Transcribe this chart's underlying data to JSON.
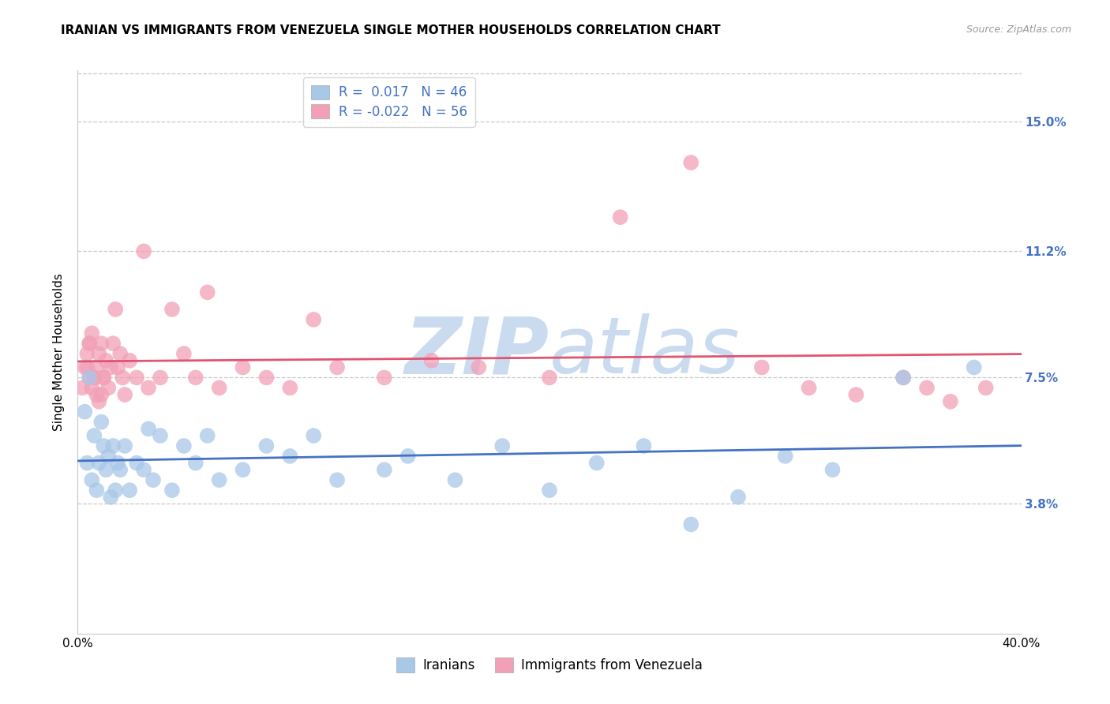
{
  "title": "IRANIAN VS IMMIGRANTS FROM VENEZUELA SINGLE MOTHER HOUSEHOLDS CORRELATION CHART",
  "source": "Source: ZipAtlas.com",
  "ylabel": "Single Mother Households",
  "ytick_vals": [
    3.8,
    7.5,
    11.2,
    15.0
  ],
  "ytick_labels": [
    "3.8%",
    "7.5%",
    "11.2%",
    "15.0%"
  ],
  "xmin": 0.0,
  "xmax": 40.0,
  "ymin": 0.0,
  "ymax": 16.5,
  "iranian_R": 0.017,
  "iranian_N": 46,
  "venezuela_R": -0.022,
  "venezuela_N": 56,
  "iranian_line_color": "#4472c4",
  "venezuela_line_color": "#e05570",
  "iranian_scatter_color": "#a8c8e8",
  "venezuela_scatter_color": "#f2a0b8",
  "watermark_color": "#ddeeff",
  "background_color": "#ffffff",
  "grid_color": "#c8c8c8",
  "right_label_color": "#4472c4",
  "title_fontsize": 11,
  "source_fontsize": 9,
  "axis_label_fontsize": 11,
  "tick_fontsize": 11,
  "legend_fontsize": 12,
  "scatter_size": 200,
  "scatter_alpha": 0.75,
  "line_width": 2.0,
  "iranians_x": [
    0.3,
    0.4,
    0.5,
    0.6,
    0.7,
    0.8,
    0.9,
    1.0,
    1.1,
    1.2,
    1.3,
    1.4,
    1.5,
    1.6,
    1.7,
    1.8,
    2.0,
    2.2,
    2.5,
    2.8,
    3.0,
    3.2,
    3.5,
    4.0,
    4.5,
    5.0,
    5.5,
    6.0,
    7.0,
    8.0,
    9.0,
    10.0,
    11.0,
    13.0,
    14.0,
    16.0,
    18.0,
    20.0,
    22.0,
    24.0,
    26.0,
    28.0,
    30.0,
    32.0,
    35.0,
    38.0
  ],
  "iranians_y": [
    6.5,
    5.0,
    7.5,
    4.5,
    5.8,
    4.2,
    5.0,
    6.2,
    5.5,
    4.8,
    5.2,
    4.0,
    5.5,
    4.2,
    5.0,
    4.8,
    5.5,
    4.2,
    5.0,
    4.8,
    6.0,
    4.5,
    5.8,
    4.2,
    5.5,
    5.0,
    5.8,
    4.5,
    4.8,
    5.5,
    5.2,
    5.8,
    4.5,
    4.8,
    5.2,
    4.5,
    5.5,
    4.2,
    5.0,
    5.5,
    3.2,
    4.0,
    5.2,
    4.8,
    7.5,
    7.8
  ],
  "venezuela_x": [
    0.2,
    0.3,
    0.4,
    0.5,
    0.5,
    0.6,
    0.6,
    0.7,
    0.8,
    0.9,
    1.0,
    1.0,
    1.1,
    1.2,
    1.3,
    1.4,
    1.5,
    1.6,
    1.7,
    1.8,
    1.9,
    2.0,
    2.2,
    2.5,
    2.8,
    3.0,
    3.5,
    4.0,
    4.5,
    5.0,
    5.5,
    6.0,
    7.0,
    8.0,
    9.0,
    10.0,
    11.0,
    13.0,
    15.0,
    17.0,
    20.0,
    23.0,
    26.0,
    29.0,
    31.0,
    33.0,
    35.0,
    36.0,
    37.0,
    38.5,
    0.4,
    0.5,
    0.7,
    0.8,
    0.9,
    1.1
  ],
  "venezuela_y": [
    7.2,
    7.8,
    8.2,
    7.5,
    8.5,
    7.2,
    8.8,
    7.5,
    7.8,
    8.2,
    7.0,
    8.5,
    7.5,
    8.0,
    7.2,
    7.8,
    8.5,
    9.5,
    7.8,
    8.2,
    7.5,
    7.0,
    8.0,
    7.5,
    11.2,
    7.2,
    7.5,
    9.5,
    8.2,
    7.5,
    10.0,
    7.2,
    7.8,
    7.5,
    7.2,
    9.2,
    7.8,
    7.5,
    8.0,
    7.8,
    7.5,
    12.2,
    13.8,
    7.8,
    7.2,
    7.0,
    7.5,
    7.2,
    6.8,
    7.2,
    7.8,
    8.5,
    7.5,
    7.0,
    6.8,
    7.5
  ]
}
